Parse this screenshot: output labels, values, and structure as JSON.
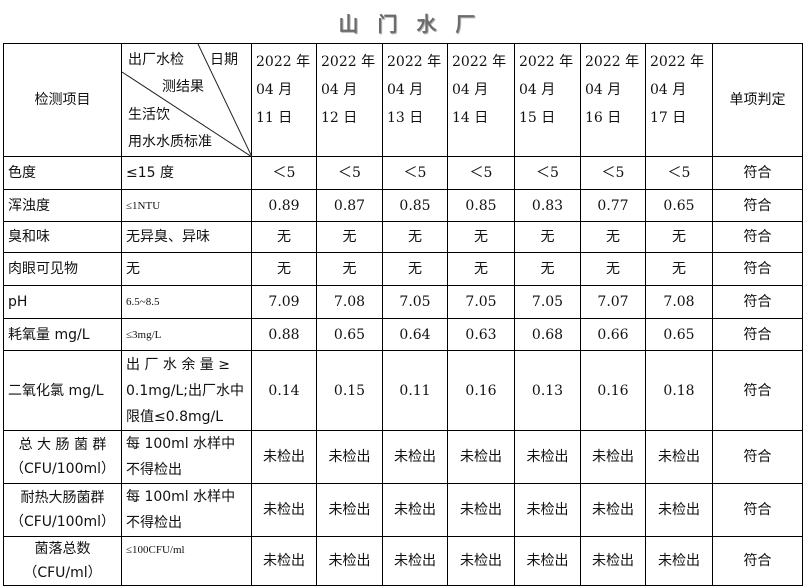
{
  "title": "山 门 水 厂",
  "header": {
    "item_label": "检测项目",
    "diag_top_left": "出厂水检",
    "diag_top_right": "日期",
    "diag_mid": "测结果",
    "diag_bottom_1": "生活饮",
    "diag_bottom_2": "用水水质标准",
    "dates": [
      [
        "2022 年",
        "04 月",
        "11 日"
      ],
      [
        "2022 年",
        "04 月",
        "12 日"
      ],
      [
        "2022 年",
        "04 月",
        "13 日"
      ],
      [
        "2022 年",
        "04 月",
        "14 日"
      ],
      [
        "2022 年",
        "04 月",
        "15 日"
      ],
      [
        "2022 年",
        "04 月",
        "16 日"
      ],
      [
        "2022 年",
        "04 月",
        "17 日"
      ]
    ],
    "verdict_label": "单项判定"
  },
  "rows": [
    {
      "item": "色度",
      "standard": "≤15 度",
      "values": [
        "＜5",
        "＜5",
        "＜5",
        "＜5",
        "＜5",
        "＜5",
        "＜5"
      ],
      "verdict": "符合"
    },
    {
      "item": "浑浊度",
      "standard": "≤1NTU",
      "values": [
        "0.89",
        "0.87",
        "0.85",
        "0.85",
        "0.83",
        "0.77",
        "0.65"
      ],
      "verdict": "符合"
    },
    {
      "item": "臭和味",
      "standard": "无异臭、异味",
      "values": [
        "无",
        "无",
        "无",
        "无",
        "无",
        "无",
        "无"
      ],
      "verdict": "符合"
    },
    {
      "item": "肉眼可见物",
      "standard": "无",
      "values": [
        "无",
        "无",
        "无",
        "无",
        "无",
        "无",
        "无"
      ],
      "verdict": "符合"
    },
    {
      "item": "pH",
      "standard": "6.5~8.5",
      "values": [
        "7.09",
        "7.08",
        "7.05",
        "7.05",
        "7.05",
        "7.07",
        "7.08"
      ],
      "verdict": "符合"
    },
    {
      "item": "耗氧量 mg/L",
      "standard": "≤3mg/L",
      "values": [
        "0.88",
        "0.65",
        "0.64",
        "0.63",
        "0.68",
        "0.66",
        "0.65"
      ],
      "verdict": "符合"
    },
    {
      "item": "二氧化氯 mg/L",
      "standard": "出 厂 水 余 量 ≥ 0.1mg/L;出厂水中限值≤0.8mg/L",
      "values": [
        "0.14",
        "0.15",
        "0.11",
        "0.16",
        "0.13",
        "0.16",
        "0.18"
      ],
      "verdict": "符合"
    },
    {
      "item": "总 大 肠 菌 群 （CFU/100ml）",
      "standard": "每 100ml 水样中不得检出",
      "values": [
        "未检出",
        "未检出",
        "未检出",
        "未检出",
        "未检出",
        "未检出",
        "未检出"
      ],
      "verdict": "符合"
    },
    {
      "item": "耐热大肠菌群 （CFU/100ml）",
      "standard": "每 100ml 水样中不得检出",
      "values": [
        "未检出",
        "未检出",
        "未检出",
        "未检出",
        "未检出",
        "未检出",
        "未检出"
      ],
      "verdict": "符合"
    },
    {
      "item": "菌落总数 （CFU/ml）",
      "standard": "≤100CFU/ml",
      "values": [
        "未检出",
        "未检出",
        "未检出",
        "未检出",
        "未检出",
        "未检出",
        "未检出"
      ],
      "verdict": "符合"
    }
  ]
}
